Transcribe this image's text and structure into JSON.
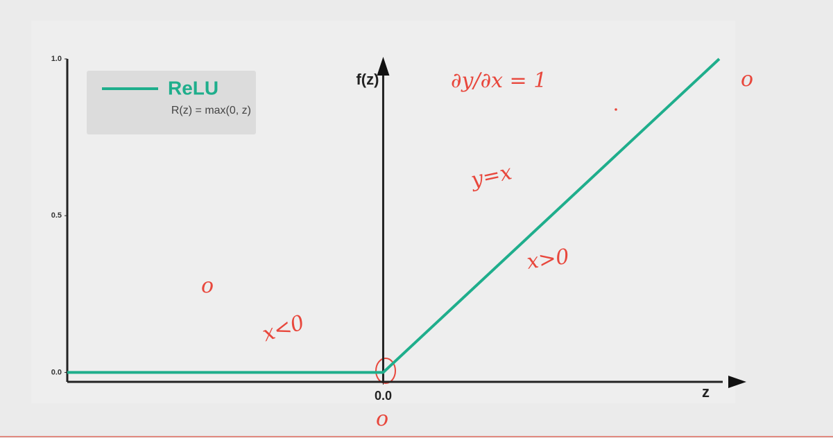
{
  "chart_data": {
    "type": "line",
    "x_label": "z",
    "y_label": "f(z)",
    "x": [
      -0.94,
      0,
      1.0
    ],
    "series": [
      {
        "name": "ReLU",
        "color": "#1fae8c",
        "values": [
          0,
          0,
          1.0
        ]
      }
    ],
    "legend_subtitle": "R(z) = max(0, z)",
    "xlim": [
      -0.94,
      1.0
    ],
    "ylim": [
      -0.03,
      1.0
    ],
    "xticks": [
      {
        "value": 0,
        "label": "0.0"
      }
    ],
    "yticks": [
      {
        "value": 0,
        "label": "0.0"
      },
      {
        "value": 0.5,
        "label": "0.5"
      },
      {
        "value": 1.0,
        "label": "1.0"
      }
    ],
    "legend": "upper left",
    "grid": false,
    "annotations": [
      "∂y/∂x = 1",
      "y=x",
      "x>0",
      "x<0",
      "o",
      "o",
      "o"
    ]
  }
}
